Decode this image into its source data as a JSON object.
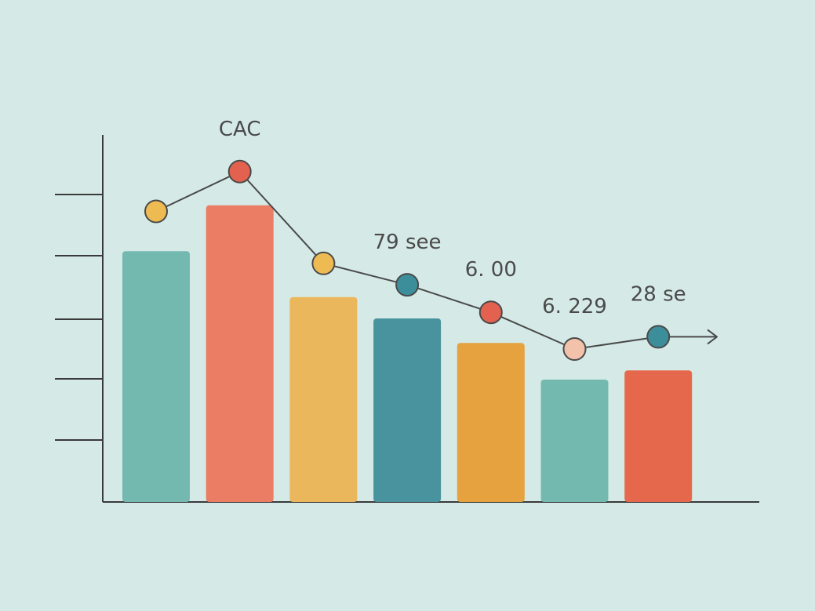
{
  "background_color": "#d5eae6",
  "axis_color": "#3a3a3a",
  "chart_data": {
    "type": "bar",
    "title": "",
    "xlabel": "",
    "ylabel": "",
    "ylim": [
      0,
      6
    ],
    "grid": false,
    "legend": "none",
    "categories": [
      "",
      "",
      "",
      "",
      "",
      "",
      ""
    ],
    "series": [
      {
        "kind": "bar",
        "values": [
          4.1,
          4.85,
          3.35,
          3.0,
          2.6,
          2.0,
          2.15
        ],
        "colors": [
          "#74b9b0",
          "#ea7d64",
          "#ebb75c",
          "#48939d",
          "#e5a23f",
          "#74b9b0",
          "#e6684c"
        ]
      },
      {
        "kind": "line",
        "values": [
          4.75,
          5.4,
          3.9,
          3.55,
          3.1,
          2.5,
          2.7
        ],
        "marker_colors": [
          "#eebb52",
          "#e3624f",
          "#eebb52",
          "#3d8e9b",
          "#e3624f",
          "#f2c2aa",
          "#3d8e9b"
        ],
        "line_color": "#4a4a4a",
        "trend_arrow": true
      }
    ],
    "annotations": [
      {
        "text": "CAC",
        "point": 1
      },
      {
        "text": "79 see",
        "point": 3
      },
      {
        "text": "6. 00",
        "point": 4
      },
      {
        "text": "6. 229",
        "point": 5
      },
      {
        "text": "28 se",
        "point": 6
      }
    ]
  }
}
